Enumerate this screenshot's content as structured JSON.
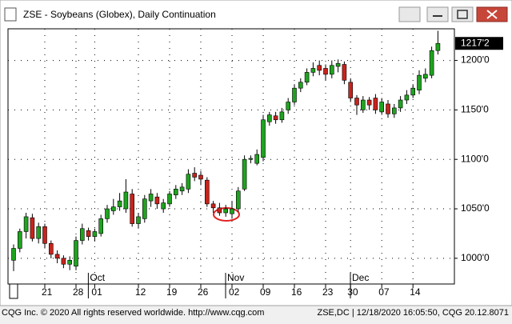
{
  "chart_data": {
    "type": "candlestick",
    "title": "ZSE - Soybeans (Globex), Daily Continuation",
    "categories": [
      null,
      null,
      null,
      null,
      null,
      "21",
      null,
      null,
      null,
      null,
      "28",
      null,
      null,
      "01",
      null,
      null,
      null,
      null,
      null,
      null,
      "12",
      null,
      null,
      null,
      null,
      "19",
      null,
      null,
      null,
      null,
      "26",
      null,
      null,
      null,
      null,
      "02",
      null,
      null,
      null,
      null,
      "09",
      null,
      null,
      null,
      null,
      "16",
      null,
      null,
      null,
      null,
      "23",
      null,
      null,
      null,
      "30",
      null,
      null,
      null,
      null,
      "07",
      null,
      null,
      null,
      null,
      "14",
      null,
      null,
      null,
      null
    ],
    "month_labels": [
      null,
      null,
      null,
      null,
      null,
      null,
      null,
      null,
      null,
      null,
      null,
      null,
      null,
      "Oct",
      null,
      null,
      null,
      null,
      null,
      null,
      null,
      null,
      null,
      null,
      null,
      null,
      null,
      null,
      null,
      null,
      null,
      null,
      null,
      null,
      null,
      "Nov",
      null,
      null,
      null,
      null,
      null,
      null,
      null,
      null,
      null,
      null,
      null,
      null,
      null,
      null,
      null,
      null,
      null,
      null,
      null,
      "Dec",
      null,
      null,
      null,
      null,
      null,
      null,
      null,
      null,
      null,
      null,
      null,
      null,
      null
    ],
    "open": [
      998,
      1010,
      1027,
      1041,
      1020,
      1032,
      1015,
      1004,
      1000,
      994,
      992,
      1018,
      1028,
      1022,
      1025,
      1040,
      1048,
      1052,
      1050,
      1065,
      1035,
      1040,
      1058,
      1062,
      1050,
      1055,
      1064,
      1068,
      1070,
      1086,
      1084,
      1079,
      1055,
      1051,
      1046,
      1045,
      1050,
      1070,
      1100,
      1096,
      1102,
      1138,
      1144,
      1140,
      1150,
      1158,
      1172,
      1178,
      1188,
      1195,
      1192,
      1186,
      1194,
      1196,
      1178,
      1162,
      1150,
      1160,
      1162,
      1148,
      1156,
      1146,
      1152,
      1160,
      1165,
      1170,
      1182,
      1185,
      1210
    ],
    "high": [
      1014,
      1030,
      1046,
      1045,
      1036,
      1035,
      1018,
      1008,
      1003,
      1002,
      1022,
      1035,
      1031,
      1030,
      1044,
      1054,
      1060,
      1066,
      1080,
      1070,
      1046,
      1064,
      1070,
      1066,
      1060,
      1068,
      1074,
      1076,
      1090,
      1092,
      1088,
      1082,
      1058,
      1056,
      1054,
      1058,
      1072,
      1104,
      1104,
      1110,
      1145,
      1148,
      1148,
      1152,
      1162,
      1176,
      1182,
      1192,
      1198,
      1200,
      1196,
      1200,
      1201,
      1199,
      1182,
      1165,
      1164,
      1163,
      1166,
      1162,
      1160,
      1156,
      1164,
      1170,
      1176,
      1190,
      1192,
      1214,
      1230
    ],
    "low": [
      987,
      1006,
      1020,
      1017,
      1015,
      1010,
      1000,
      995,
      990,
      988,
      988,
      1014,
      1018,
      1017,
      1022,
      1036,
      1044,
      1048,
      1046,
      1032,
      1030,
      1036,
      1052,
      1050,
      1046,
      1052,
      1060,
      1064,
      1066,
      1078,
      1074,
      1052,
      1046,
      1043,
      1042,
      1040,
      1047,
      1068,
      1096,
      1094,
      1098,
      1134,
      1136,
      1137,
      1146,
      1155,
      1168,
      1175,
      1184,
      1185,
      1180,
      1182,
      1188,
      1176,
      1158,
      1145,
      1147,
      1150,
      1146,
      1145,
      1142,
      1142,
      1148,
      1156,
      1162,
      1166,
      1178,
      1182,
      1206
    ],
    "close": [
      1010,
      1027,
      1042,
      1020,
      1032,
      1015,
      1004,
      1000,
      994,
      998,
      1018,
      1030,
      1022,
      1027,
      1040,
      1050,
      1052,
      1058,
      1067,
      1035,
      1042,
      1060,
      1065,
      1055,
      1056,
      1065,
      1070,
      1072,
      1085,
      1082,
      1080,
      1055,
      1051,
      1046,
      1050,
      1050,
      1068,
      1100,
      1101,
      1105,
      1140,
      1145,
      1140,
      1148,
      1158,
      1172,
      1178,
      1188,
      1192,
      1190,
      1186,
      1195,
      1197,
      1180,
      1162,
      1155,
      1160,
      1155,
      1150,
      1158,
      1146,
      1152,
      1160,
      1165,
      1172,
      1185,
      1186,
      1210,
      1217.25
    ],
    "up_color": "#1fa31f",
    "down_color": "#c8231c",
    "ylim": [
      974,
      1232
    ],
    "yticks": [
      {
        "value": 1000,
        "label": "1000'0"
      },
      {
        "value": 1050,
        "label": "1050'0"
      },
      {
        "value": 1100,
        "label": "1100'0"
      },
      {
        "value": 1150,
        "label": "1150'0"
      },
      {
        "value": 1200,
        "label": "1200'0"
      }
    ],
    "last_price": {
      "value": 1217.25,
      "label": "1217'2"
    },
    "grid": true
  },
  "footer": {
    "left": "CQG Inc. © 2020 All rights reserved worldwide. http://www.cqg.com",
    "right": "ZSE,DC | 12/18/2020 16:05:50, CQG 20.12.8071"
  }
}
